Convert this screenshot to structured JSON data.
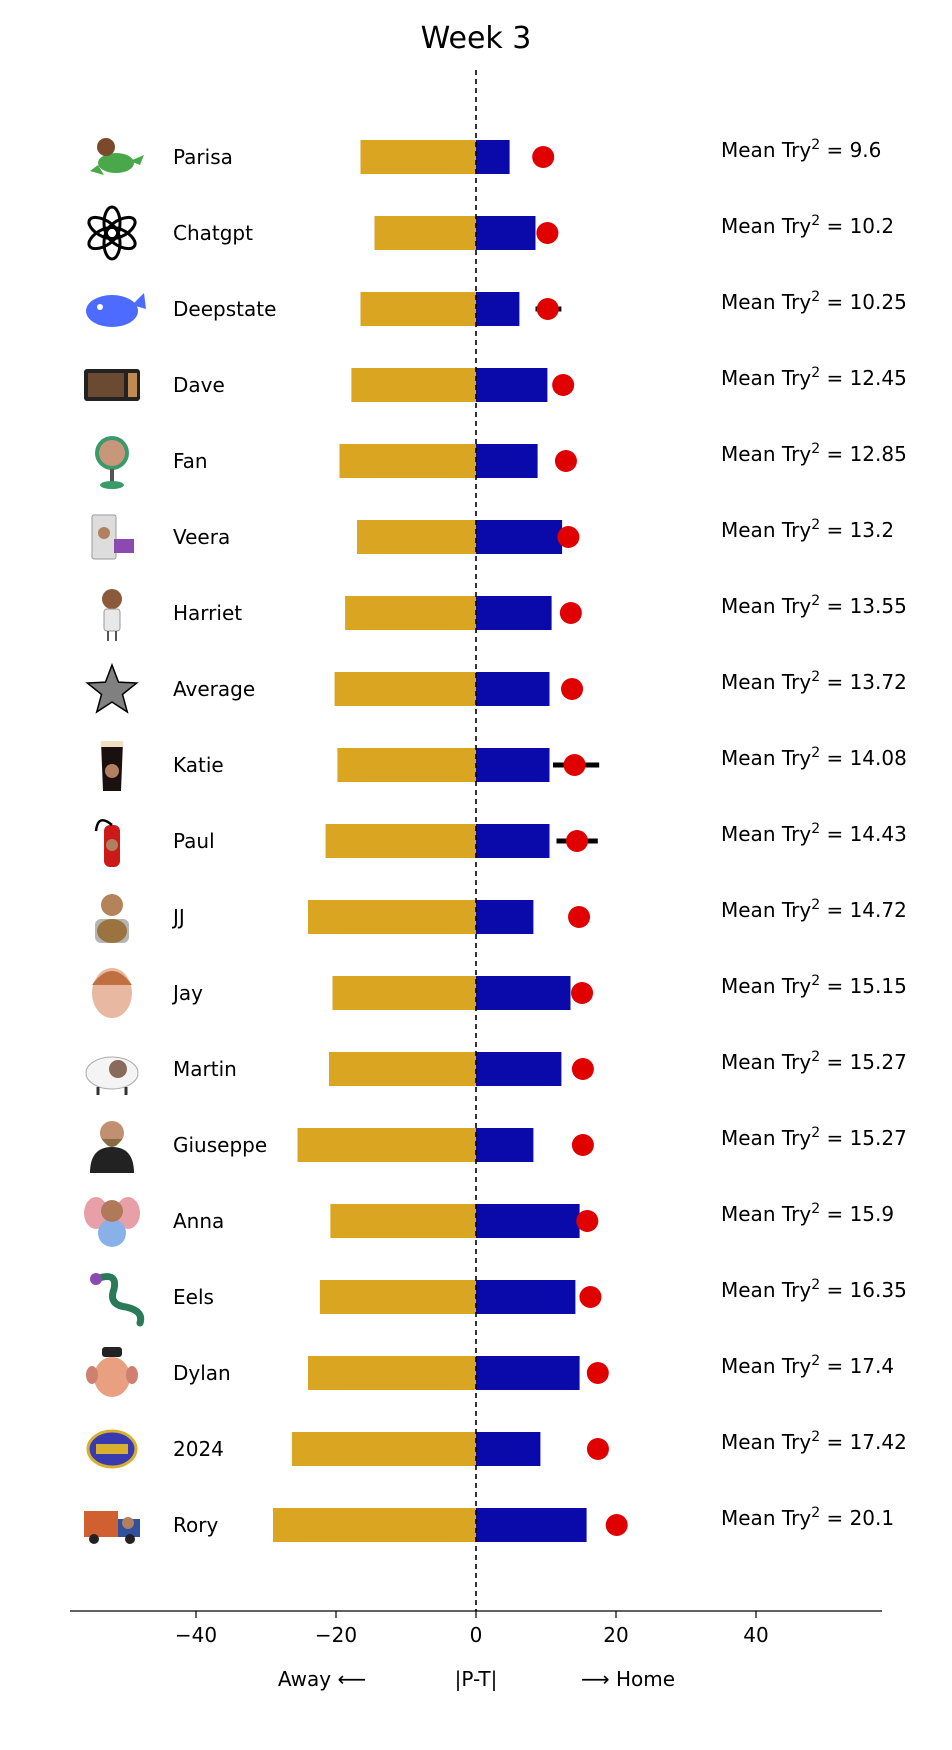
{
  "chart_data": {
    "type": "bar",
    "title": "Week 3",
    "x_axis": {
      "xlim": [
        -58,
        58
      ],
      "ticks": [
        -40,
        -20,
        0,
        20,
        40
      ],
      "tick_labels": [
        "−40",
        "−20",
        "0",
        "20",
        "40"
      ],
      "label_left": "Away ⟵",
      "label_center": "|P-T|",
      "label_right": "⟶ Home"
    },
    "stat_prefix": "Mean Try",
    "stat_superscript": "2",
    "stat_equals": " = ",
    "colors": {
      "away": "#DAA520",
      "home": "#0A0AAA",
      "marker": "#E00000",
      "error": "#000000"
    },
    "rows": [
      {
        "name": "Parisa",
        "icon": "dinosaur-icon",
        "away": -16.5,
        "home": 4.8,
        "marker": 9.6,
        "err": null,
        "mean_try": "9.6"
      },
      {
        "name": "Chatgpt",
        "icon": "openai-logo-icon",
        "away": -14.5,
        "home": 8.5,
        "marker": 10.2,
        "err": null,
        "mean_try": "10.2"
      },
      {
        "name": "Deepstate",
        "icon": "whale-icon",
        "away": -16.5,
        "home": 6.2,
        "marker": 10.25,
        "err": [
          8.5,
          12.2
        ],
        "mean_try": "10.25"
      },
      {
        "name": "Dave",
        "icon": "microwave-icon",
        "away": -17.8,
        "home": 10.2,
        "marker": 12.45,
        "err": null,
        "mean_try": "12.45"
      },
      {
        "name": "Fan",
        "icon": "fan-face-icon",
        "away": -19.5,
        "home": 8.8,
        "marker": 12.85,
        "err": null,
        "mean_try": "12.85"
      },
      {
        "name": "Veera",
        "icon": "computer-icon",
        "away": -17.0,
        "home": 12.3,
        "marker": 13.2,
        "err": null,
        "mean_try": "13.2"
      },
      {
        "name": "Harriet",
        "icon": "person-icon",
        "away": -18.7,
        "home": 10.8,
        "marker": 13.55,
        "err": null,
        "mean_try": "13.55"
      },
      {
        "name": "Average",
        "icon": "star-icon",
        "away": -20.2,
        "home": 10.5,
        "marker": 13.72,
        "err": null,
        "mean_try": "13.72"
      },
      {
        "name": "Katie",
        "icon": "pint-glass-icon",
        "away": -19.8,
        "home": 10.5,
        "marker": 14.08,
        "err": [
          11.0,
          17.6
        ],
        "mean_try": "14.08"
      },
      {
        "name": "Paul",
        "icon": "fire-extinguisher-icon",
        "away": -21.5,
        "home": 10.5,
        "marker": 14.43,
        "err": [
          11.5,
          17.4
        ],
        "mean_try": "14.43"
      },
      {
        "name": "JJ",
        "icon": "person-with-dog-icon",
        "away": -24.0,
        "home": 8.2,
        "marker": 14.72,
        "err": null,
        "mean_try": "14.72"
      },
      {
        "name": "Jay",
        "icon": "face-icon",
        "away": -20.5,
        "home": 13.5,
        "marker": 15.15,
        "err": null,
        "mean_try": "15.15"
      },
      {
        "name": "Martin",
        "icon": "sheep-icon",
        "away": -21.0,
        "home": 12.2,
        "marker": 15.27,
        "err": null,
        "mean_try": "15.27"
      },
      {
        "name": "Giuseppe",
        "icon": "bearded-man-icon",
        "away": -25.5,
        "home": 8.2,
        "marker": 15.27,
        "err": null,
        "mean_try": "15.27"
      },
      {
        "name": "Anna",
        "icon": "elephant-icon",
        "away": -20.8,
        "home": 14.8,
        "marker": 15.9,
        "err": null,
        "mean_try": "15.9"
      },
      {
        "name": "Eels",
        "icon": "eel-icon",
        "away": -22.3,
        "home": 14.2,
        "marker": 16.35,
        "err": null,
        "mean_try": "16.35"
      },
      {
        "name": "Dylan",
        "icon": "potato-head-icon",
        "away": -24.0,
        "home": 14.8,
        "marker": 17.4,
        "err": null,
        "mean_try": "17.4"
      },
      {
        "name": "2024",
        "icon": "badge-2024-icon",
        "away": -26.3,
        "home": 9.2,
        "marker": 17.42,
        "err": null,
        "mean_try": "17.42"
      },
      {
        "name": "Rory",
        "icon": "truck-icon",
        "away": -29.0,
        "home": 15.8,
        "marker": 20.1,
        "err": null,
        "mean_try": "20.1"
      }
    ]
  }
}
